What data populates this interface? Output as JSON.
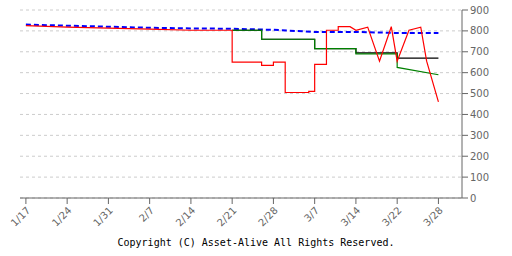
{
  "chart_data": {
    "type": "line",
    "xlim": [
      -1,
      74
    ],
    "xticks": [
      {
        "value": 0,
        "label": "1/17"
      },
      {
        "value": 7,
        "label": "1/24"
      },
      {
        "value": 14,
        "label": "1/31"
      },
      {
        "value": 21,
        "label": "2/7"
      },
      {
        "value": 28,
        "label": "2/14"
      },
      {
        "value": 35,
        "label": "2/21"
      },
      {
        "value": 42,
        "label": "2/28"
      },
      {
        "value": 49,
        "label": "3/7"
      },
      {
        "value": 56,
        "label": "3/14"
      },
      {
        "value": 63,
        "label": "3/22"
      },
      {
        "value": 70,
        "label": "3/28"
      }
    ],
    "ylim": [
      0,
      900
    ],
    "yticks": [
      0,
      100,
      200,
      300,
      400,
      500,
      600,
      700,
      800,
      900
    ],
    "grid": "y",
    "annotations": [
      "Copyright (C) Asset-Alive All Rights Reserved."
    ],
    "series": [
      {
        "color": "blue",
        "line_style": "dashed",
        "x": [
          0,
          7,
          14,
          21,
          28,
          35,
          42,
          49,
          56,
          63,
          70
        ],
        "values": [
          830,
          825,
          820,
          815,
          812,
          810,
          805,
          795,
          795,
          790,
          790
        ]
      },
      {
        "color": "black",
        "line_style": "solid",
        "x": [
          35,
          40,
          40,
          49,
          49,
          56,
          56,
          63,
          63,
          70
        ],
        "values": [
          803,
          803,
          760,
          760,
          715,
          715,
          695,
          695,
          670,
          670
        ]
      },
      {
        "color": "green",
        "line_style": "solid",
        "x": [
          35,
          40,
          40,
          49,
          49,
          56,
          56,
          63,
          63,
          70
        ],
        "values": [
          803,
          803,
          760,
          760,
          715,
          715,
          690,
          690,
          625,
          590
        ]
      },
      {
        "color": "red",
        "line_style": "solid",
        "x": [
          0,
          7,
          14,
          21,
          28,
          35,
          35,
          40,
          40,
          42,
          42,
          44,
          44,
          48,
          48,
          49,
          49,
          51,
          51,
          53,
          53,
          55,
          56,
          56,
          58,
          58,
          60,
          60,
          62,
          62,
          63,
          63,
          65,
          65,
          67,
          67,
          68,
          68,
          70
        ],
        "values": [
          825,
          818,
          813,
          808,
          803,
          803,
          650,
          650,
          635,
          635,
          650,
          650,
          505,
          505,
          510,
          510,
          640,
          640,
          803,
          803,
          820,
          820,
          803,
          803,
          818,
          818,
          655,
          655,
          820,
          820,
          655,
          655,
          803,
          803,
          818,
          818,
          655,
          655,
          460
        ]
      }
    ]
  }
}
